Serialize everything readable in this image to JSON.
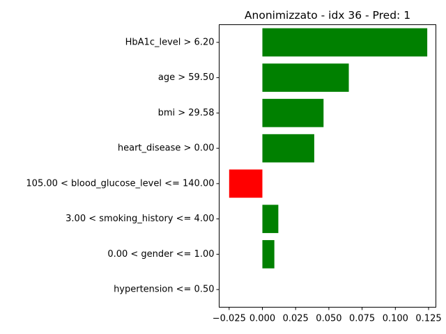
{
  "chart_data": {
    "type": "bar",
    "orientation": "horizontal",
    "title": "Anonimizzato - idx 36 - Pred: 1",
    "xlabel": "",
    "ylabel": "",
    "categories": [
      "HbA1c_level > 6.20",
      "age > 59.50",
      "bmi > 29.58",
      "heart_disease > 0.00",
      "105.00 < blood_glucose_level <= 140.00",
      "3.00 < smoking_history <= 4.00",
      "0.00 < gender <= 1.00",
      "hypertension <= 0.50"
    ],
    "values": [
      0.124,
      0.065,
      0.046,
      0.039,
      -0.025,
      0.012,
      0.009,
      0.0
    ],
    "xlim": [
      -0.0325,
      0.1305
    ],
    "xticks": [
      -0.025,
      0.0,
      0.025,
      0.05,
      0.075,
      0.1,
      0.125
    ],
    "xtick_labels": [
      "−0.025",
      "0.000",
      "0.025",
      "0.050",
      "0.075",
      "0.100",
      "0.125"
    ],
    "grid": false,
    "colors": {
      "positive": "#008000",
      "negative": "#ff0000"
    }
  }
}
